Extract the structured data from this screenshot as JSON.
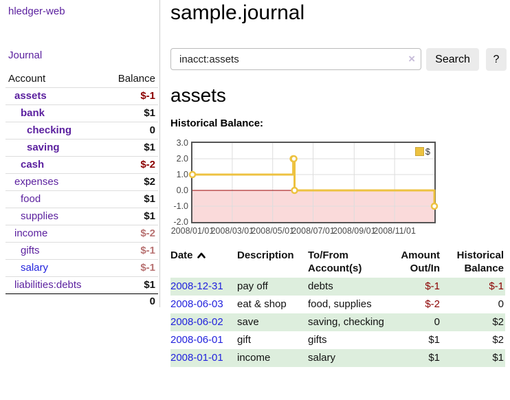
{
  "brand": {
    "label": "hledger-web"
  },
  "nav": {
    "journal": "Journal"
  },
  "sidebar": {
    "account_header": "Account",
    "balance_header": "Balance",
    "accounts": [
      {
        "name": "assets",
        "depth": 1,
        "balance": "$-1",
        "in_path": true,
        "balance_style": "neg-strong",
        "name_color": "purple"
      },
      {
        "name": "bank",
        "depth": 2,
        "balance": "$1",
        "in_path": true,
        "balance_style": "pos",
        "name_color": "purple"
      },
      {
        "name": "checking",
        "depth": 3,
        "balance": "0",
        "in_path": true,
        "balance_style": "pos",
        "name_color": "purple"
      },
      {
        "name": "saving",
        "depth": 3,
        "balance": "$1",
        "in_path": true,
        "balance_style": "pos",
        "name_color": "purple"
      },
      {
        "name": "cash",
        "depth": 2,
        "balance": "$-2",
        "in_path": true,
        "balance_style": "neg-strong",
        "name_color": "purple"
      },
      {
        "name": "expenses",
        "depth": 1,
        "balance": "$2",
        "in_path": false,
        "balance_style": "pos",
        "name_color": "purple"
      },
      {
        "name": "food",
        "depth": 2,
        "balance": "$1",
        "in_path": false,
        "balance_style": "pos",
        "name_color": "purple"
      },
      {
        "name": "supplies",
        "depth": 2,
        "balance": "$1",
        "in_path": false,
        "balance_style": "pos",
        "name_color": "purple"
      },
      {
        "name": "income",
        "depth": 1,
        "balance": "$-2",
        "in_path": false,
        "balance_style": "neg-soft",
        "name_color": "purple"
      },
      {
        "name": "gifts",
        "depth": 2,
        "balance": "$-1",
        "in_path": false,
        "balance_style": "neg-soft",
        "name_color": "purple"
      },
      {
        "name": "salary",
        "depth": 2,
        "balance": "$-1",
        "in_path": false,
        "balance_style": "neg-soft",
        "name_color": "blue"
      },
      {
        "name": "liabilities:debts",
        "depth": 1,
        "balance": "$1",
        "in_path": false,
        "balance_style": "pos",
        "name_color": "purple"
      }
    ],
    "total": "0"
  },
  "page": {
    "title": "sample.journal",
    "account_title": "assets",
    "chart_heading": "Historical Balance:"
  },
  "search": {
    "value": "inacct:assets",
    "clear_icon": "×",
    "search_button": "Search",
    "help_button": "?"
  },
  "chart_data": {
    "type": "line",
    "step": true,
    "title": "Historical Balance:",
    "series": [
      {
        "name": "$",
        "color": "#edc240",
        "points": [
          [
            "2008-01-01",
            1
          ],
          [
            "2008-06-01",
            2
          ],
          [
            "2008-06-02",
            2
          ],
          [
            "2008-06-03",
            0
          ],
          [
            "2008-12-31",
            -1
          ]
        ]
      }
    ],
    "x_start": "2008-01-01",
    "x_end": "2008-12-31",
    "x_tick_labels": [
      "2008/01/01",
      "2008/03/01",
      "2008/05/01",
      "2008/07/01",
      "2008/09/01",
      "2008/11/01"
    ],
    "x_tick_days": [
      0,
      60,
      121,
      182,
      244,
      305
    ],
    "y_ticks": [
      "3.0",
      "2.0",
      "1.0",
      "0.0",
      "-1.0",
      "-2.0"
    ],
    "y_tick_values": [
      3,
      2,
      1,
      0,
      -1,
      -2
    ],
    "ylim": [
      -2,
      3
    ],
    "grid": true,
    "grid_color": "#dddddd",
    "negative_region_fill": "#fadada",
    "zero_line_color": "#990000",
    "point_fill": "#ffffff",
    "legend": {
      "label": "$",
      "position": "top-right"
    }
  },
  "register": {
    "headers": {
      "date": "Date",
      "description": "Description",
      "accounts": "To/From Account(s)",
      "amount": "Amount Out/In",
      "balance": "Historical Balance"
    },
    "rows": [
      {
        "date": "2008-12-31",
        "description": "pay off",
        "accounts": "debts",
        "amount": "$-1",
        "amount_negative": true,
        "balance": "$-1",
        "balance_negative": true
      },
      {
        "date": "2008-06-03",
        "description": "eat & shop",
        "accounts": "food, supplies",
        "amount": "$-2",
        "amount_negative": true,
        "balance": "0",
        "balance_negative": false
      },
      {
        "date": "2008-06-02",
        "description": "save",
        "accounts": "saving, checking",
        "amount": "0",
        "amount_negative": false,
        "balance": "$2",
        "balance_negative": false
      },
      {
        "date": "2008-06-01",
        "description": "gift",
        "accounts": "gifts",
        "amount": "$1",
        "amount_negative": false,
        "balance": "$2",
        "balance_negative": false
      },
      {
        "date": "2008-01-01",
        "description": "income",
        "accounts": "salary",
        "amount": "$1",
        "amount_negative": false,
        "balance": "$1",
        "balance_negative": false
      }
    ]
  }
}
